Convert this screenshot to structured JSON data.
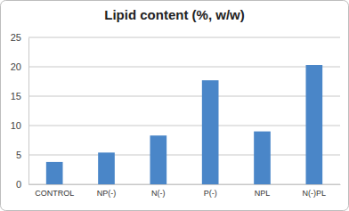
{
  "chart_data": {
    "type": "bar",
    "title": "Lipid content (%, w/w)",
    "categories": [
      "CONTROL",
      "NP(-)",
      "N(-)",
      "P(-)",
      "NPL",
      "N(-)PL"
    ],
    "values": [
      3.8,
      5.4,
      8.3,
      17.7,
      9.0,
      20.3
    ],
    "color": "#4a86c8",
    "ylim": [
      0,
      25
    ],
    "yticks": [
      0,
      5,
      10,
      15,
      20,
      25
    ],
    "grid": true
  }
}
